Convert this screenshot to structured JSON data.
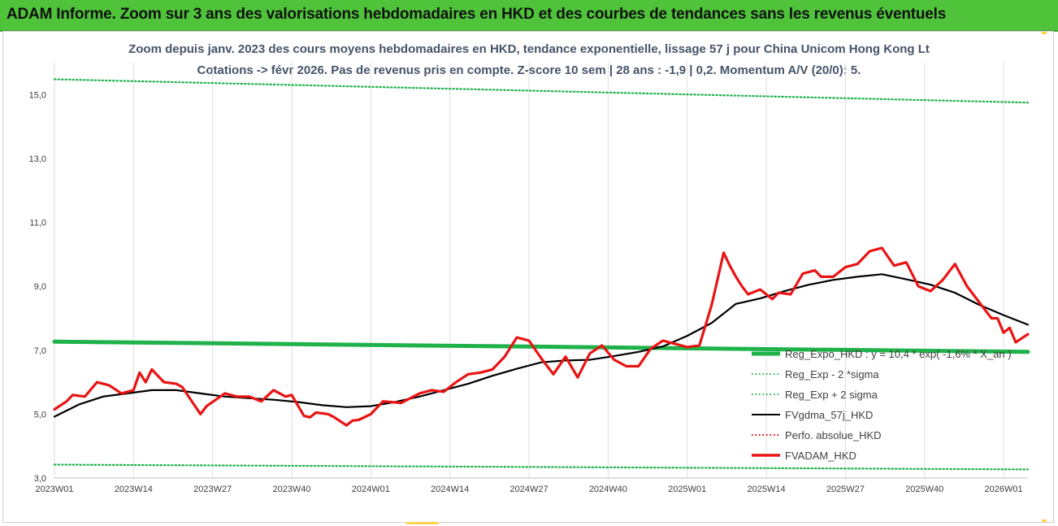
{
  "header": {
    "banner_title": "ADAM Informe. Zoom sur 3 ans des valorisations hebdomadaires en HKD et des courbes de tendances sans les revenus éventuels",
    "banner_color": "#4fc43a"
  },
  "chart_data": {
    "type": "line",
    "title_line1": "Zoom depuis janv. 2023 des cours moyens hebdomadaires en HKD, tendance exponentielle, lissage 57 j pour China Unicom Hong Kong Lt",
    "title_line2": "Cotations -> févr 2026. Pas de revenus pris en compte. Z-score 10 sem | 28 ans : -1,9 | 0,2. Momentum A/V (20/0): 5.",
    "xlabel": "",
    "ylabel": "",
    "ylim": [
      3.0,
      16.0
    ],
    "y_ticks": [
      "3,0",
      "5,0",
      "7,0",
      "9,0",
      "11,0",
      "13,0",
      "15,0"
    ],
    "y_tick_values": [
      3,
      5,
      7,
      9,
      11,
      13,
      15
    ],
    "x_ticks": [
      "2023W01",
      "2023W14",
      "2023W27",
      "2023W40",
      "2024W01",
      "2024W14",
      "2024W27",
      "2024W40",
      "2025W01",
      "2025W14",
      "2025W27",
      "2025W40",
      "2026W01"
    ],
    "x_tick_weeks": [
      0,
      13,
      26,
      39,
      52,
      65,
      78,
      91,
      104,
      117,
      130,
      143,
      156
    ],
    "x_range_weeks": [
      0,
      160
    ],
    "grid": "vertical",
    "legend_placement": "bottom-right",
    "series": [
      {
        "name": "Reg_Expo_HKD : y = 10,4 * exp( -1,6% * X_an )",
        "color": "#1fb24a",
        "style": "thick",
        "x": [
          0,
          160
        ],
        "values": [
          7.27,
          6.95
        ]
      },
      {
        "name": "Reg_Exp - 2 *sigma",
        "color": "#1fb24a",
        "style": "dotted",
        "x": [
          0,
          160
        ],
        "values": [
          3.42,
          3.27
        ]
      },
      {
        "name": "Reg_Exp + 2 sigma",
        "color": "#1fb24a",
        "style": "dotted",
        "x": [
          0,
          160
        ],
        "values": [
          15.48,
          14.75
        ]
      },
      {
        "name": "FVgdma_57j_HKD",
        "color": "#000000",
        "style": "solid",
        "x": [
          0,
          4,
          8,
          12,
          16,
          20,
          24,
          28,
          32,
          36,
          40,
          44,
          48,
          52,
          56,
          60,
          64,
          68,
          72,
          76,
          80,
          84,
          88,
          92,
          96,
          100,
          104,
          108,
          112,
          116,
          120,
          124,
          128,
          132,
          136,
          140,
          144,
          148,
          152,
          156,
          160
        ],
        "values": [
          4.92,
          5.3,
          5.55,
          5.65,
          5.75,
          5.75,
          5.65,
          5.55,
          5.5,
          5.45,
          5.38,
          5.28,
          5.22,
          5.25,
          5.38,
          5.55,
          5.75,
          5.95,
          6.2,
          6.42,
          6.62,
          6.68,
          6.7,
          6.82,
          6.95,
          7.12,
          7.45,
          7.85,
          8.45,
          8.62,
          8.85,
          9.05,
          9.2,
          9.3,
          9.38,
          9.22,
          9.05,
          8.8,
          8.42,
          8.1,
          7.8
        ]
      },
      {
        "name": "Perfo. absolue_HKD",
        "color": "#e00000",
        "style": "dotted",
        "x": [],
        "values": []
      },
      {
        "name": "FVADAM_HKD",
        "color": "#e81414",
        "style": "thick",
        "x": [
          0,
          2,
          3,
          5,
          7,
          9,
          11,
          13,
          14,
          15,
          16,
          18,
          20,
          21,
          24,
          25,
          28,
          30,
          32,
          34,
          36,
          38,
          39,
          41,
          42,
          43,
          45,
          46,
          48,
          49,
          50,
          52,
          54,
          57,
          60,
          62,
          64,
          66,
          68,
          70,
          72,
          74,
          76,
          78,
          80,
          82,
          84,
          86,
          88,
          90,
          92,
          94,
          96,
          98,
          100,
          102,
          104,
          106,
          108,
          110,
          111,
          112,
          113,
          114,
          116,
          118,
          119,
          121,
          123,
          125,
          126,
          128,
          130,
          132,
          134,
          136,
          138,
          140,
          142,
          144,
          146,
          148,
          150,
          152,
          154,
          155,
          156,
          157,
          158,
          160
        ],
        "values": [
          5.15,
          5.4,
          5.6,
          5.55,
          6.0,
          5.9,
          5.65,
          5.75,
          6.3,
          6.0,
          6.4,
          6.0,
          5.95,
          5.85,
          5.0,
          5.25,
          5.65,
          5.55,
          5.55,
          5.4,
          5.75,
          5.55,
          5.6,
          4.95,
          4.9,
          5.05,
          5.0,
          4.9,
          4.65,
          4.8,
          4.82,
          5.0,
          5.4,
          5.35,
          5.65,
          5.75,
          5.7,
          6.0,
          6.25,
          6.3,
          6.4,
          6.8,
          7.4,
          7.3,
          6.75,
          6.25,
          6.8,
          6.15,
          6.9,
          7.15,
          6.7,
          6.5,
          6.5,
          7.05,
          7.3,
          7.2,
          7.1,
          7.15,
          8.4,
          10.05,
          9.65,
          9.3,
          9.0,
          8.75,
          8.9,
          8.6,
          8.8,
          8.75,
          9.4,
          9.5,
          9.3,
          9.3,
          9.6,
          9.7,
          10.1,
          10.2,
          9.65,
          9.75,
          9.0,
          8.85,
          9.2,
          9.7,
          9.0,
          8.5,
          8.0,
          8.0,
          7.55,
          7.7,
          7.25,
          7.5
        ]
      }
    ]
  }
}
